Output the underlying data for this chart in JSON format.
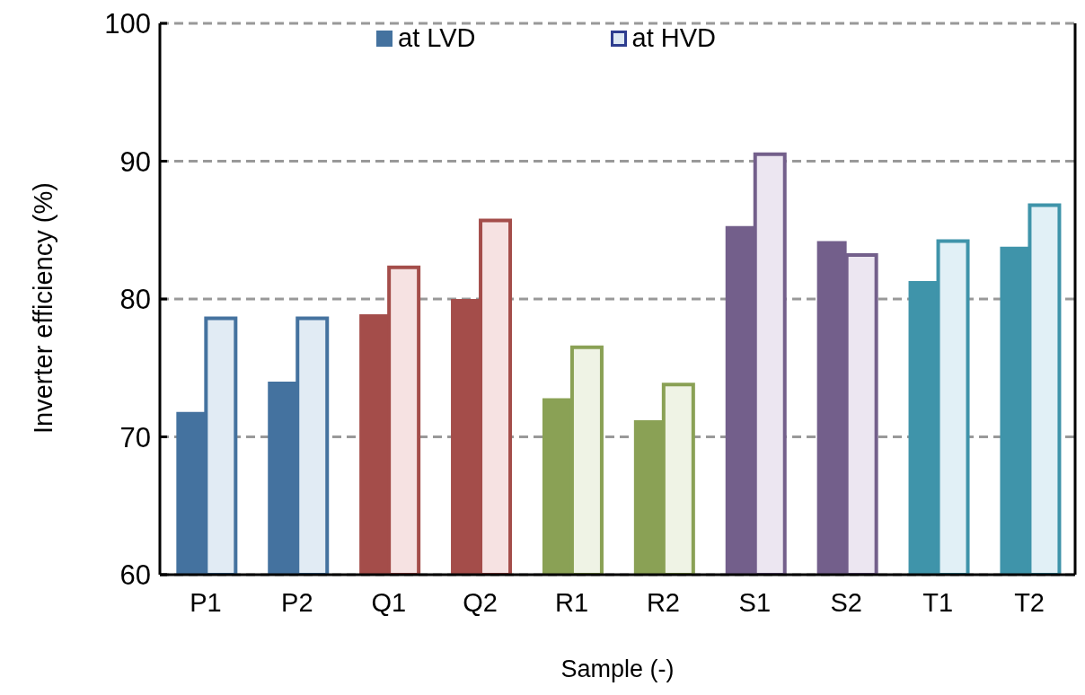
{
  "chart_data": {
    "type": "bar",
    "xlabel": "Sample (-)",
    "ylabel": "Inverter efficiency (%)",
    "categories": [
      "P1",
      "P2",
      "Q1",
      "Q2",
      "R1",
      "R2",
      "S1",
      "S2",
      "T1",
      "T2"
    ],
    "series": [
      {
        "name": "at LVD",
        "color": "#44729f",
        "colors": [
          "#44729f",
          "#44729f",
          "#a44d4a",
          "#a44d4a",
          "#8aa155",
          "#8aa155",
          "#735f8b",
          "#735f8b",
          "#3f94aa",
          "#3f94aa"
        ],
        "values": [
          71.8,
          74.0,
          78.9,
          80.0,
          72.8,
          71.2,
          85.3,
          84.2,
          81.3,
          83.8
        ]
      },
      {
        "name": "at HVD",
        "color": "#dde8f3",
        "colors": [
          "#e1ebf4",
          "#e1ebf4",
          "#f6e2e2",
          "#f6e2e2",
          "#eff3e5",
          "#eff3e5",
          "#ece6f1",
          "#ece6f1",
          "#e1f0f6",
          "#e1f0f6"
        ],
        "values": [
          78.6,
          78.6,
          82.3,
          85.7,
          76.5,
          73.8,
          90.5,
          83.2,
          84.2,
          86.8
        ]
      }
    ],
    "ylim": [
      60,
      100
    ],
    "yticks": [
      60,
      70,
      80,
      90,
      100
    ],
    "grid": "y",
    "legend": "top"
  }
}
